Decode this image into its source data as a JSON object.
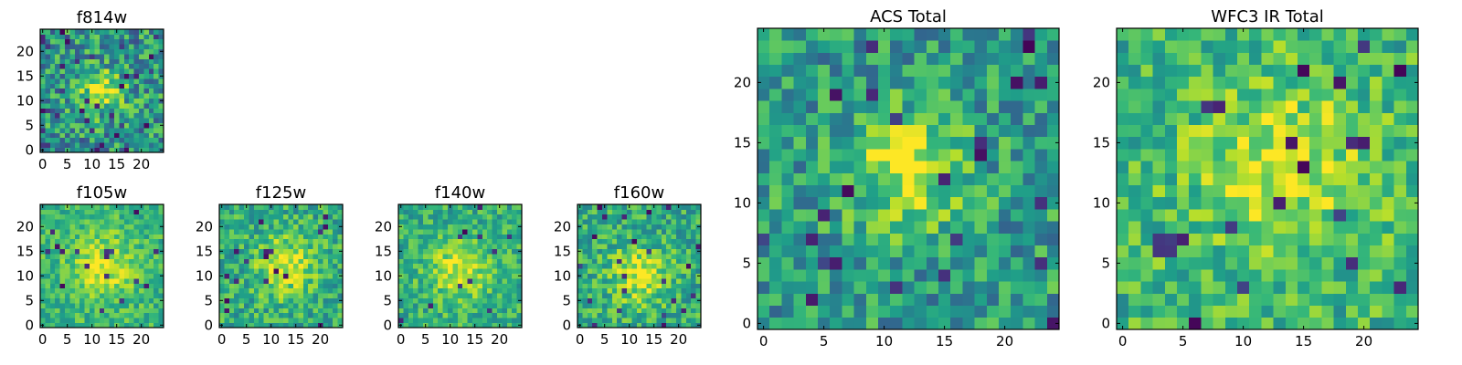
{
  "figure": {
    "description_free": true
  },
  "chart_data": [
    {
      "type": "heatmap",
      "title": "f814w",
      "grid_size": 25,
      "colormap": "viridis",
      "xlim": [
        -0.5,
        24.5
      ],
      "ylim": [
        -0.5,
        24.5
      ],
      "xticks": [
        0,
        5,
        10,
        15,
        20
      ],
      "xtick_labels": [
        "0",
        "5",
        "10",
        "15",
        "20"
      ],
      "yticks": [
        0,
        5,
        10,
        15,
        20
      ],
      "ytick_labels": [
        "0",
        "5",
        "10",
        "15",
        "20"
      ],
      "center": [
        12,
        12
      ],
      "peak": 0.92,
      "background": 0.52,
      "sigma": 3.0,
      "noise": 0.28,
      "dark_fraction": 0.05,
      "seed": 11
    },
    {
      "type": "heatmap",
      "title": "f105w",
      "grid_size": 25,
      "colormap": "viridis",
      "xlim": [
        -0.5,
        24.5
      ],
      "ylim": [
        -0.5,
        24.5
      ],
      "xticks": [
        0,
        5,
        10,
        15,
        20
      ],
      "xtick_labels": [
        "0",
        "5",
        "10",
        "15",
        "20"
      ],
      "yticks": [
        0,
        5,
        10,
        15,
        20
      ],
      "ytick_labels": [
        "0",
        "5",
        "10",
        "15",
        "20"
      ],
      "center": [
        12,
        12
      ],
      "peak": 0.95,
      "background": 0.66,
      "sigma": 4.5,
      "noise": 0.16,
      "dark_fraction": 0.02,
      "seed": 23
    },
    {
      "type": "heatmap",
      "title": "f125w",
      "grid_size": 25,
      "colormap": "viridis",
      "xlim": [
        -0.5,
        24.5
      ],
      "ylim": [
        -0.5,
        24.5
      ],
      "xticks": [
        0,
        5,
        10,
        15,
        20
      ],
      "xtick_labels": [
        "0",
        "5",
        "10",
        "15",
        "20"
      ],
      "yticks": [
        0,
        5,
        10,
        15,
        20
      ],
      "ytick_labels": [
        "0",
        "5",
        "10",
        "15",
        "20"
      ],
      "center": [
        13,
        12
      ],
      "peak": 0.95,
      "background": 0.62,
      "sigma": 4.0,
      "noise": 0.2,
      "dark_fraction": 0.03,
      "seed": 37
    },
    {
      "type": "heatmap",
      "title": "f140w",
      "grid_size": 25,
      "colormap": "viridis",
      "xlim": [
        -0.5,
        24.5
      ],
      "ylim": [
        -0.5,
        24.5
      ],
      "xticks": [
        0,
        5,
        10,
        15,
        20
      ],
      "xtick_labels": [
        "0",
        "5",
        "10",
        "15",
        "20"
      ],
      "yticks": [
        0,
        5,
        10,
        15,
        20
      ],
      "ytick_labels": [
        "0",
        "5",
        "10",
        "15",
        "20"
      ],
      "center": [
        12,
        11
      ],
      "peak": 0.95,
      "background": 0.63,
      "sigma": 4.2,
      "noise": 0.18,
      "dark_fraction": 0.02,
      "seed": 51
    },
    {
      "type": "heatmap",
      "title": "f160w",
      "grid_size": 25,
      "colormap": "viridis",
      "xlim": [
        -0.5,
        24.5
      ],
      "ylim": [
        -0.5,
        24.5
      ],
      "xticks": [
        0,
        5,
        10,
        15,
        20
      ],
      "xtick_labels": [
        "0",
        "5",
        "10",
        "15",
        "20"
      ],
      "yticks": [
        0,
        5,
        10,
        15,
        20
      ],
      "ytick_labels": [
        "0",
        "5",
        "10",
        "15",
        "20"
      ],
      "center": [
        12,
        10
      ],
      "peak": 0.95,
      "background": 0.62,
      "sigma": 4.0,
      "noise": 0.2,
      "dark_fraction": 0.03,
      "seed": 67
    },
    {
      "type": "heatmap",
      "title": "ACS Total",
      "grid_size": 25,
      "colormap": "viridis",
      "xlim": [
        -0.5,
        24.5
      ],
      "ylim": [
        -0.5,
        24.5
      ],
      "xticks": [
        0,
        5,
        10,
        15,
        20
      ],
      "xtick_labels": [
        "0",
        "5",
        "10",
        "15",
        "20"
      ],
      "yticks": [
        0,
        5,
        10,
        15,
        20
      ],
      "ytick_labels": [
        "0",
        "5",
        "10",
        "15",
        "20"
      ],
      "center": [
        12,
        13
      ],
      "peak": 0.97,
      "background": 0.55,
      "sigma": 3.2,
      "noise": 0.24,
      "dark_fraction": 0.04,
      "seed": 89
    },
    {
      "type": "heatmap",
      "title": "WFC3 IR Total",
      "grid_size": 25,
      "colormap": "viridis",
      "xlim": [
        -0.5,
        24.5
      ],
      "ylim": [
        -0.5,
        24.5
      ],
      "xticks": [
        0,
        5,
        10,
        15,
        20
      ],
      "xtick_labels": [
        "0",
        "5",
        "10",
        "15",
        "20"
      ],
      "yticks": [
        0,
        5,
        10,
        15,
        20
      ],
      "ytick_labels": [
        "0",
        "5",
        "10",
        "15",
        "20"
      ],
      "center": [
        13,
        13
      ],
      "peak": 0.93,
      "background": 0.66,
      "sigma": 5.0,
      "noise": 0.2,
      "dark_fraction": 0.04,
      "seed": 101
    }
  ]
}
